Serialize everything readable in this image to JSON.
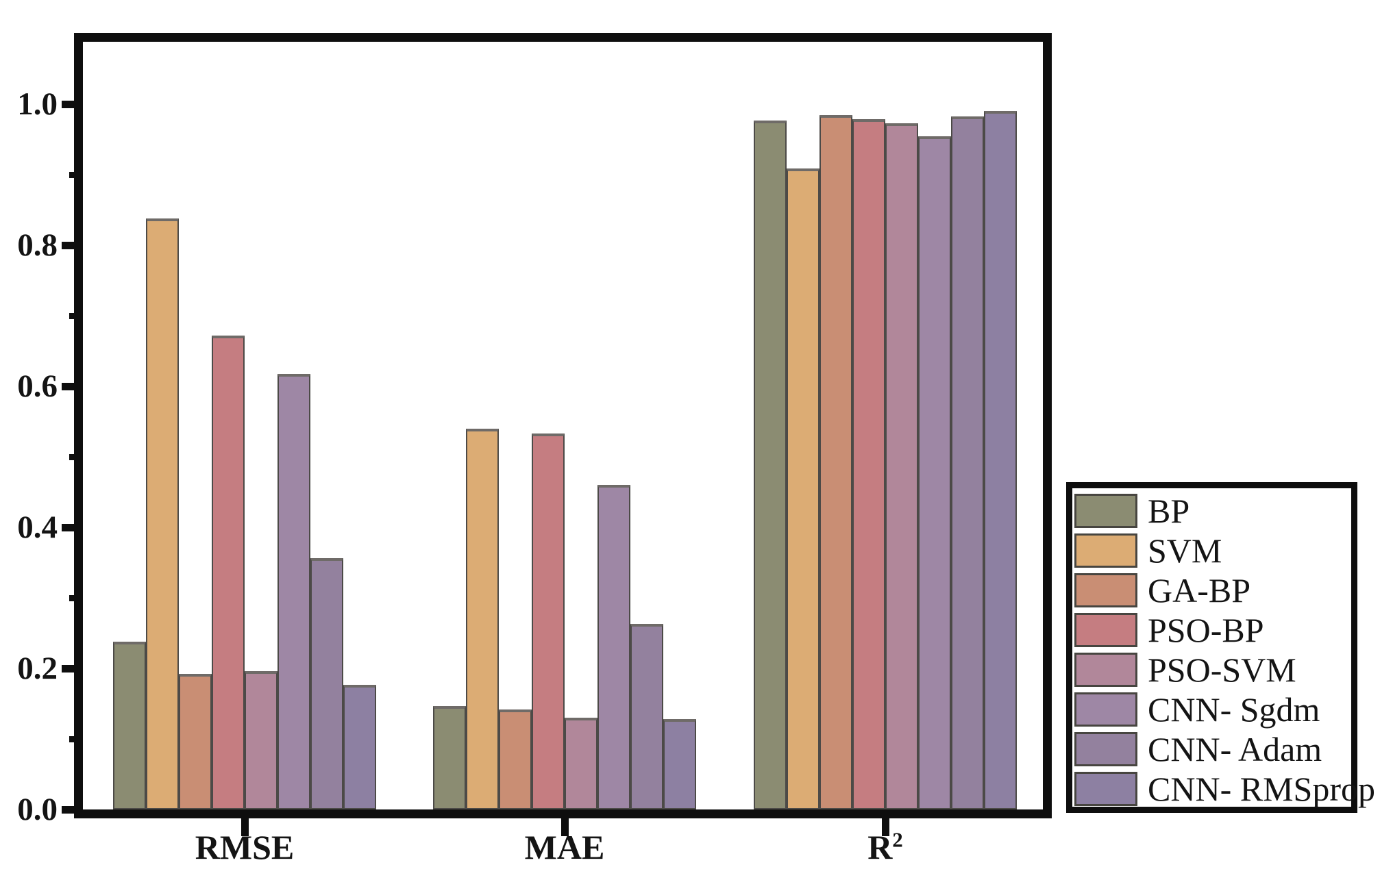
{
  "figure": {
    "background": "#ffffff",
    "frame_color": "#0e0e0e",
    "text_color": "#141414"
  },
  "chart_data": {
    "type": "bar",
    "title": "",
    "xlabel": "",
    "ylabel": "",
    "categories": [
      "RMSE",
      "MAE",
      "R²"
    ],
    "series": [
      {
        "name": "BP",
        "color": "#8b8c72",
        "values": [
          0.238,
          0.147,
          0.977
        ]
      },
      {
        "name": "SVM",
        "color": "#dcac74",
        "values": [
          0.838,
          0.54,
          0.909
        ]
      },
      {
        "name": "GA-BP",
        "color": "#c98e74",
        "values": [
          0.192,
          0.142,
          0.984
        ]
      },
      {
        "name": "PSO-BP",
        "color": "#c57d81",
        "values": [
          0.672,
          0.533,
          0.979
        ]
      },
      {
        "name": "PSO-SVM",
        "color": "#b1879a",
        "values": [
          0.196,
          0.13,
          0.973
        ]
      },
      {
        "name": "CNN- Sgdm",
        "color": "#9e87a5",
        "values": [
          0.617,
          0.46,
          0.954
        ]
      },
      {
        "name": "CNN- Adam",
        "color": "#93819e",
        "values": [
          0.356,
          0.263,
          0.983
        ]
      },
      {
        "name": "CNN- RMSprop",
        "color": "#8d80a2",
        "values": [
          0.177,
          0.128,
          0.99
        ]
      }
    ],
    "ylim": [
      0,
      1.09
    ],
    "yticks_major": [
      0.0,
      0.2,
      0.4,
      0.6,
      0.8,
      1.0
    ],
    "ytick_labels": [
      "0.0",
      "0.2",
      "0.4",
      "0.6",
      "0.8",
      "1.0"
    ],
    "yticks_minor": [
      0.1,
      0.3,
      0.5,
      0.7,
      0.9
    ],
    "grid": false,
    "legend_position": "outside-right-bottom",
    "bar_border_color": "#4c4a47"
  },
  "legend": {
    "items": [
      "BP",
      "SVM",
      "GA-BP",
      "PSO-BP",
      "PSO-SVM",
      "CNN- Sgdm",
      "CNN- Adam",
      "CNN- RMSprop"
    ]
  }
}
